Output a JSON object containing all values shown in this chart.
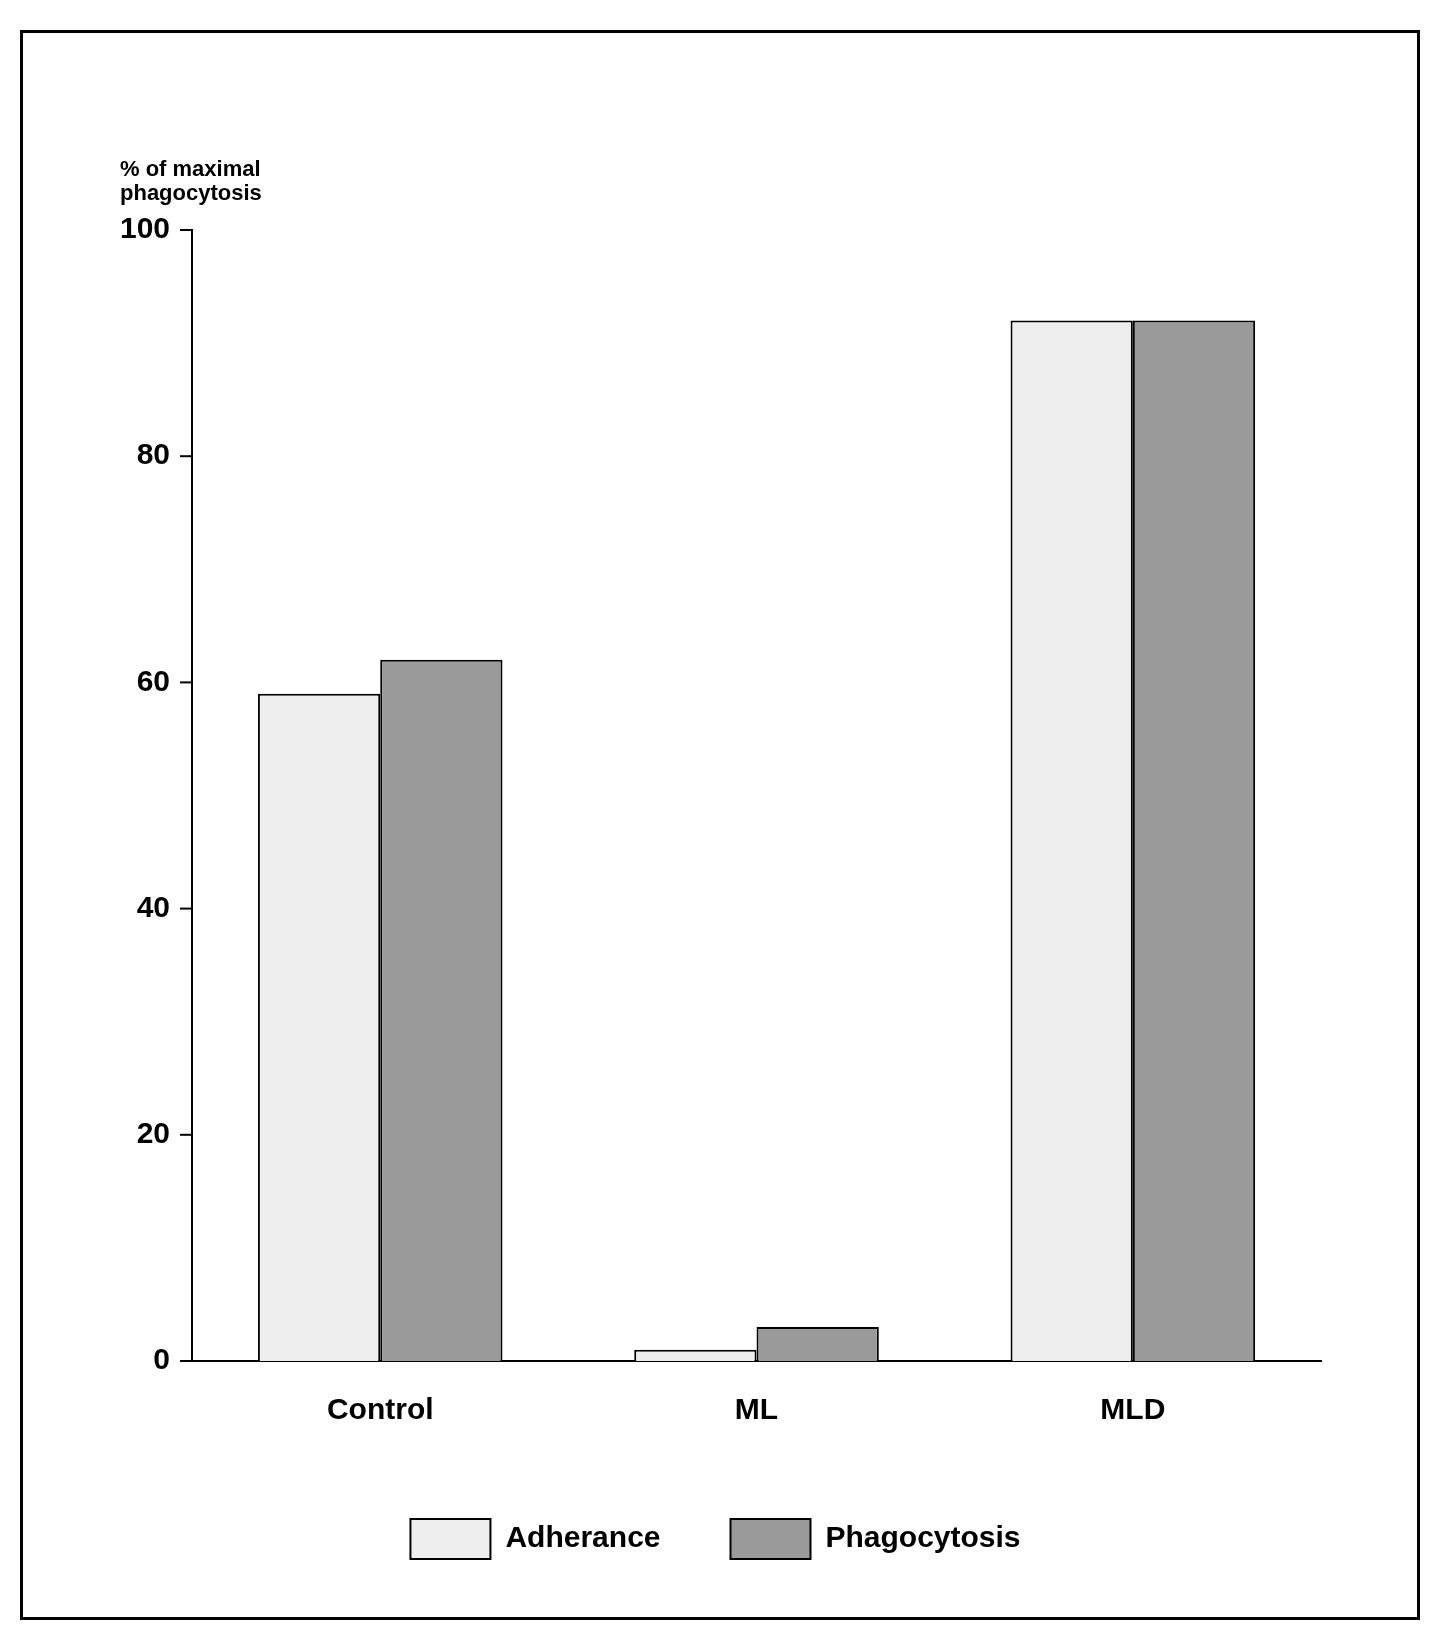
{
  "chart_data": {
    "type": "bar",
    "ylabel": "% of maximal phagocytosis",
    "categories": [
      "Control",
      "ML",
      "MLD"
    ],
    "series": [
      {
        "name": "Adherance",
        "color": "#eeeeee",
        "values": [
          59,
          1,
          92
        ]
      },
      {
        "name": "Phagocytosis",
        "color": "#9a9a9a",
        "values": [
          62,
          3,
          92
        ]
      }
    ],
    "ylim": [
      0,
      100
    ],
    "yticks": [
      0,
      20,
      40,
      60,
      80,
      100
    ],
    "grid": false,
    "legend": "bottom"
  }
}
